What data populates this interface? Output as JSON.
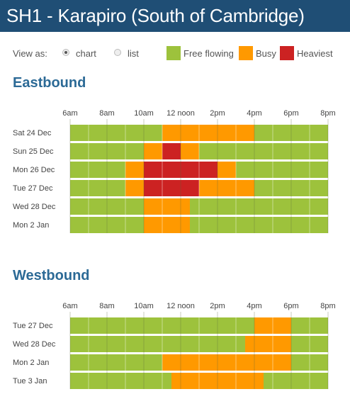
{
  "header": {
    "title": "SH1 - Karapiro (South of Cambridge)"
  },
  "view": {
    "label": "View as:",
    "options": [
      {
        "label": "chart",
        "selected": true
      },
      {
        "label": "list",
        "selected": false
      }
    ]
  },
  "legend": [
    {
      "key": "free",
      "label": "Free flowing",
      "color": "#9dc23c"
    },
    {
      "key": "busy",
      "label": "Busy",
      "color": "#ff9900"
    },
    {
      "key": "heaviest",
      "label": "Heaviest",
      "color": "#cc2222"
    }
  ],
  "chart_data": [
    {
      "type": "heatmap",
      "title": "Eastbound",
      "x_ticks": [
        "6am",
        "8am",
        "10am",
        "12 noon",
        "2pm",
        "4pm",
        "6pm",
        "8pm"
      ],
      "x_range_hours": [
        6,
        20
      ],
      "grid": true,
      "rows": [
        {
          "label": "Sat 24 Dec",
          "segments": [
            {
              "start": 6,
              "end": 11,
              "level": "free"
            },
            {
              "start": 11,
              "end": 16,
              "level": "busy"
            },
            {
              "start": 16,
              "end": 20,
              "level": "free"
            }
          ]
        },
        {
          "label": "Sun 25 Dec",
          "segments": [
            {
              "start": 6,
              "end": 10,
              "level": "free"
            },
            {
              "start": 10,
              "end": 11,
              "level": "busy"
            },
            {
              "start": 11,
              "end": 12,
              "level": "heaviest"
            },
            {
              "start": 12,
              "end": 13,
              "level": "busy"
            },
            {
              "start": 13,
              "end": 20,
              "level": "free"
            }
          ]
        },
        {
          "label": "Mon 26 Dec",
          "segments": [
            {
              "start": 6,
              "end": 9,
              "level": "free"
            },
            {
              "start": 9,
              "end": 10,
              "level": "busy"
            },
            {
              "start": 10,
              "end": 14,
              "level": "heaviest"
            },
            {
              "start": 14,
              "end": 15,
              "level": "busy"
            },
            {
              "start": 15,
              "end": 20,
              "level": "free"
            }
          ]
        },
        {
          "label": "Tue 27 Dec",
          "segments": [
            {
              "start": 6,
              "end": 9,
              "level": "free"
            },
            {
              "start": 9,
              "end": 10,
              "level": "busy"
            },
            {
              "start": 10,
              "end": 13,
              "level": "heaviest"
            },
            {
              "start": 13,
              "end": 16,
              "level": "busy"
            },
            {
              "start": 16,
              "end": 20,
              "level": "free"
            }
          ]
        },
        {
          "label": "Wed 28 Dec",
          "segments": [
            {
              "start": 6,
              "end": 10,
              "level": "free"
            },
            {
              "start": 10,
              "end": 12.5,
              "level": "busy"
            },
            {
              "start": 12.5,
              "end": 20,
              "level": "free"
            }
          ]
        },
        {
          "label": "Mon 2 Jan",
          "segments": [
            {
              "start": 6,
              "end": 10,
              "level": "free"
            },
            {
              "start": 10,
              "end": 12.5,
              "level": "busy"
            },
            {
              "start": 12.5,
              "end": 20,
              "level": "free"
            }
          ]
        }
      ]
    },
    {
      "type": "heatmap",
      "title": "Westbound",
      "x_ticks": [
        "6am",
        "8am",
        "10am",
        "12 noon",
        "2pm",
        "4pm",
        "6pm",
        "8pm"
      ],
      "x_range_hours": [
        6,
        20
      ],
      "grid": true,
      "rows": [
        {
          "label": "Tue 27 Dec",
          "segments": [
            {
              "start": 6,
              "end": 16,
              "level": "free"
            },
            {
              "start": 16,
              "end": 18,
              "level": "busy"
            },
            {
              "start": 18,
              "end": 20,
              "level": "free"
            }
          ]
        },
        {
          "label": "Wed 28 Dec",
          "segments": [
            {
              "start": 6,
              "end": 15.5,
              "level": "free"
            },
            {
              "start": 15.5,
              "end": 18,
              "level": "busy"
            },
            {
              "start": 18,
              "end": 20,
              "level": "free"
            }
          ]
        },
        {
          "label": "Mon 2 Jan",
          "segments": [
            {
              "start": 6,
              "end": 11,
              "level": "free"
            },
            {
              "start": 11,
              "end": 18,
              "level": "busy"
            },
            {
              "start": 18,
              "end": 20,
              "level": "free"
            }
          ]
        },
        {
          "label": "Tue 3 Jan",
          "segments": [
            {
              "start": 6,
              "end": 11.5,
              "level": "free"
            },
            {
              "start": 11.5,
              "end": 16.5,
              "level": "busy"
            },
            {
              "start": 16.5,
              "end": 20,
              "level": "free"
            }
          ]
        }
      ]
    }
  ]
}
